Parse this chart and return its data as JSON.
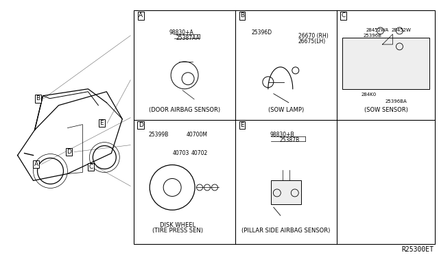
{
  "bg_color": "#ffffff",
  "border_color": "#000000",
  "text_color": "#000000",
  "diagram_code": "R25300ET",
  "panels": {
    "A": {
      "label": "A",
      "title": "(DOOR AIRBAG SENSOR)",
      "parts": [
        "98830+A",
        "25387AA"
      ]
    },
    "B": {
      "label": "B",
      "title": "(SOW LAMP)",
      "parts": [
        "25396D",
        "26670 (RH)",
        "26675(LH)"
      ]
    },
    "C": {
      "label": "C",
      "title": "(SOW SENSOR)",
      "parts": [
        "28452WA",
        "28452W",
        "25396B",
        "284K0",
        "25396BA"
      ]
    },
    "D": {
      "label": "D",
      "title": "(TIRE PRESS SEN)",
      "subtitle": "DISK WHEEL",
      "parts": [
        "25399B",
        "40700M",
        "40703",
        "40702"
      ]
    },
    "E": {
      "label": "E",
      "title": "(PILLAR SIDE AIRBAG SENSOR)",
      "parts": [
        "98830+B",
        "25387B"
      ]
    }
  }
}
